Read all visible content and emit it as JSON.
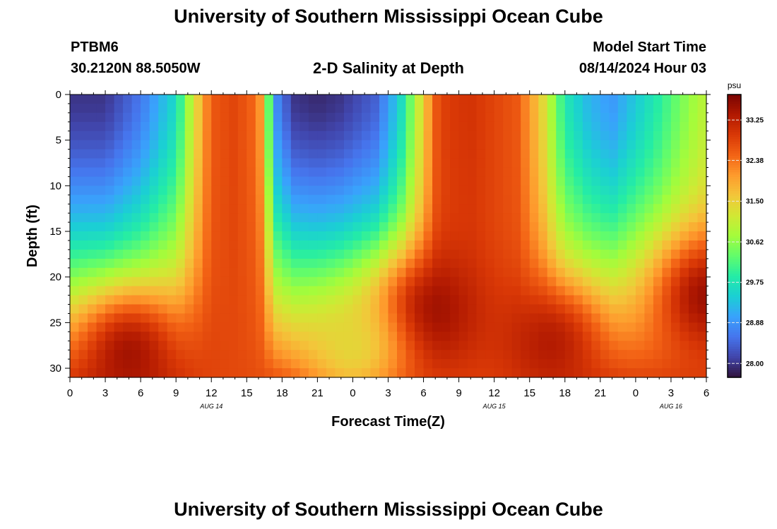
{
  "header": {
    "title": "University of Southern Mississippi Ocean Cube",
    "station": "PTBM6",
    "coordinates": "30.2120N  88.5050W",
    "subtitle": "2-D Salinity at Depth",
    "model_start_label": "Model Start Time",
    "model_start_value": "08/14/2024 Hour 03"
  },
  "footer": {
    "repeat_title": "University of Southern Mississippi Ocean Cube"
  },
  "chart_data": {
    "type": "heatmap",
    "title": "2-D Salinity at Depth",
    "xlabel": "Forecast Time(Z)",
    "ylabel": "Depth (ft)",
    "units": "psu",
    "x_range_hours": [
      0,
      54
    ],
    "y_range_ft": [
      0,
      31
    ],
    "x_tick_labels": [
      "0",
      "3",
      "6",
      "9",
      "12",
      "15",
      "18",
      "21",
      "0",
      "3",
      "6",
      "9",
      "12",
      "15",
      "18",
      "21",
      "0",
      "3",
      "6"
    ],
    "y_ticks": [
      0,
      5,
      10,
      15,
      20,
      25,
      30
    ],
    "date_labels": [
      {
        "label": "AUG 14",
        "hour": 12
      },
      {
        "label": "AUG 15",
        "hour": 36
      },
      {
        "label": "AUG 16",
        "hour": 51
      }
    ],
    "colorbar": {
      "label": "psu",
      "min": 27.7,
      "max": 33.8,
      "tick_values": [
        28.0,
        28.88,
        29.75,
        30.62,
        31.5,
        32.38,
        33.25
      ],
      "tick_labels": [
        "28.00",
        "28.88",
        "29.75",
        "30.62",
        "31.50",
        "32.38",
        "33.25"
      ],
      "colors": [
        "#30123b",
        "#4145ab",
        "#4675ed",
        "#39a2fc",
        "#1bcfd4",
        "#24eca6",
        "#61fc6c",
        "#a4fc3b",
        "#d1e834",
        "#f3c63a",
        "#fe9b2d",
        "#f36315",
        "#d93806",
        "#b11901",
        "#7a0402"
      ]
    },
    "surface_profile_hours": [
      0,
      3,
      6,
      9,
      10.5,
      12,
      14,
      16,
      17.5,
      19,
      21,
      23,
      26,
      28,
      30,
      31,
      32,
      34,
      36,
      38,
      40,
      42,
      44,
      46,
      48,
      50,
      52,
      54
    ],
    "surface_profile_psu": [
      28.0,
      28.0,
      28.6,
      29.6,
      31.2,
      32.6,
      32.8,
      32.4,
      28.8,
      28.0,
      27.9,
      28.0,
      28.4,
      29.5,
      31.5,
      32.6,
      32.9,
      33.0,
      32.8,
      32.6,
      31.5,
      29.8,
      29.2,
      28.9,
      29.4,
      29.9,
      30.5,
      31.0
    ],
    "anomaly_centers": [
      {
        "hour": 5,
        "depth_ft": 28,
        "psu": 33.7
      },
      {
        "hour": 30,
        "depth_ft": 24,
        "psu": 33.8
      },
      {
        "hour": 41,
        "depth_ft": 27,
        "psu": 33.5
      },
      {
        "hour": 54,
        "depth_ft": 22,
        "psu": 33.8
      },
      {
        "hour": 24,
        "depth_ft": 28,
        "psu": 31.3
      }
    ]
  }
}
